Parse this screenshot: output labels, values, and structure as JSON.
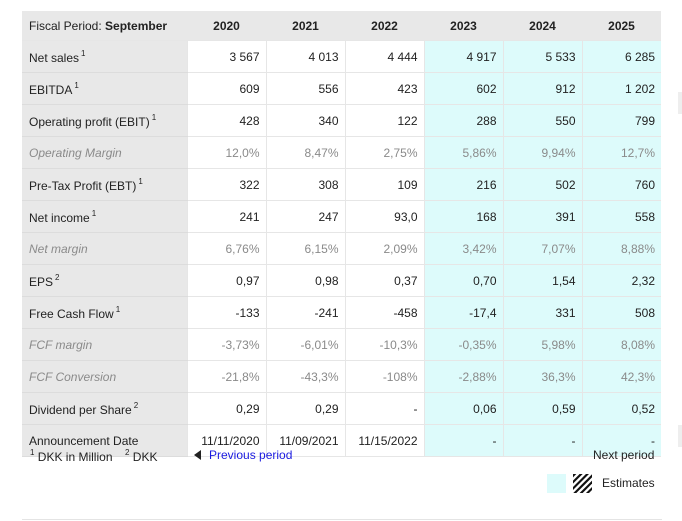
{
  "header": {
    "label_prefix": "Fiscal Period:",
    "label_value": "September",
    "years": [
      "2020",
      "2021",
      "2022",
      "2023",
      "2024",
      "2025"
    ],
    "estimate_from_index": 3
  },
  "rows": [
    {
      "label": "Net sales",
      "sup": "1",
      "italic": false,
      "values": [
        "3 567",
        "4 013",
        "4 444",
        "4 917",
        "5 533",
        "6 285"
      ]
    },
    {
      "label": "EBITDA",
      "sup": "1",
      "italic": false,
      "values": [
        "609",
        "556",
        "423",
        "602",
        "912",
        "1 202"
      ]
    },
    {
      "label": "Operating profit (EBIT)",
      "sup": "1",
      "italic": false,
      "values": [
        "428",
        "340",
        "122",
        "288",
        "550",
        "799"
      ]
    },
    {
      "label": "Operating Margin",
      "sup": "",
      "italic": true,
      "values": [
        "12,0%",
        "8,47%",
        "2,75%",
        "5,86%",
        "9,94%",
        "12,7%"
      ]
    },
    {
      "label": "Pre-Tax Profit (EBT)",
      "sup": "1",
      "italic": false,
      "values": [
        "322",
        "308",
        "109",
        "216",
        "502",
        "760"
      ]
    },
    {
      "label": "Net income",
      "sup": "1",
      "italic": false,
      "values": [
        "241",
        "247",
        "93,0",
        "168",
        "391",
        "558"
      ]
    },
    {
      "label": "Net margin",
      "sup": "",
      "italic": true,
      "values": [
        "6,76%",
        "6,15%",
        "2,09%",
        "3,42%",
        "7,07%",
        "8,88%"
      ]
    },
    {
      "label": "EPS",
      "sup": "2",
      "italic": false,
      "values": [
        "0,97",
        "0,98",
        "0,37",
        "0,70",
        "1,54",
        "2,32"
      ]
    },
    {
      "label": "Free Cash Flow",
      "sup": "1",
      "italic": false,
      "values": [
        "-133",
        "-241",
        "-458",
        "-17,4",
        "331",
        "508"
      ]
    },
    {
      "label": "FCF margin",
      "sup": "",
      "italic": true,
      "values": [
        "-3,73%",
        "-6,01%",
        "-10,3%",
        "-0,35%",
        "5,98%",
        "8,08%"
      ]
    },
    {
      "label": "FCF Conversion",
      "sup": "",
      "italic": true,
      "values": [
        "-21,8%",
        "-43,3%",
        "-108%",
        "-2,88%",
        "36,3%",
        "42,3%"
      ]
    },
    {
      "label": "Dividend per Share",
      "sup": "2",
      "italic": false,
      "values": [
        "0,29",
        "0,29",
        "-",
        "0,06",
        "0,59",
        "0,52"
      ]
    },
    {
      "label": "Announcement Date",
      "sup": "",
      "italic": false,
      "values": [
        "11/11/2020",
        "11/09/2021",
        "11/15/2022",
        "-",
        "-",
        "-"
      ]
    }
  ],
  "footnotes": {
    "note1_sup": "1",
    "note1_text": "DKK in Million",
    "note2_sup": "2",
    "note2_text": "DKK"
  },
  "nav": {
    "previous_label": "Previous period",
    "next_label": "Next period"
  },
  "legend": {
    "estimates_label": "Estimates"
  },
  "colors": {
    "estimate_bg": "#ddfbfb",
    "header_bg": "#e8e8e8",
    "link": "#1a1ae0"
  },
  "icons": {
    "previous": "triangle-left-icon",
    "hatch": "hatch-pattern-icon"
  }
}
